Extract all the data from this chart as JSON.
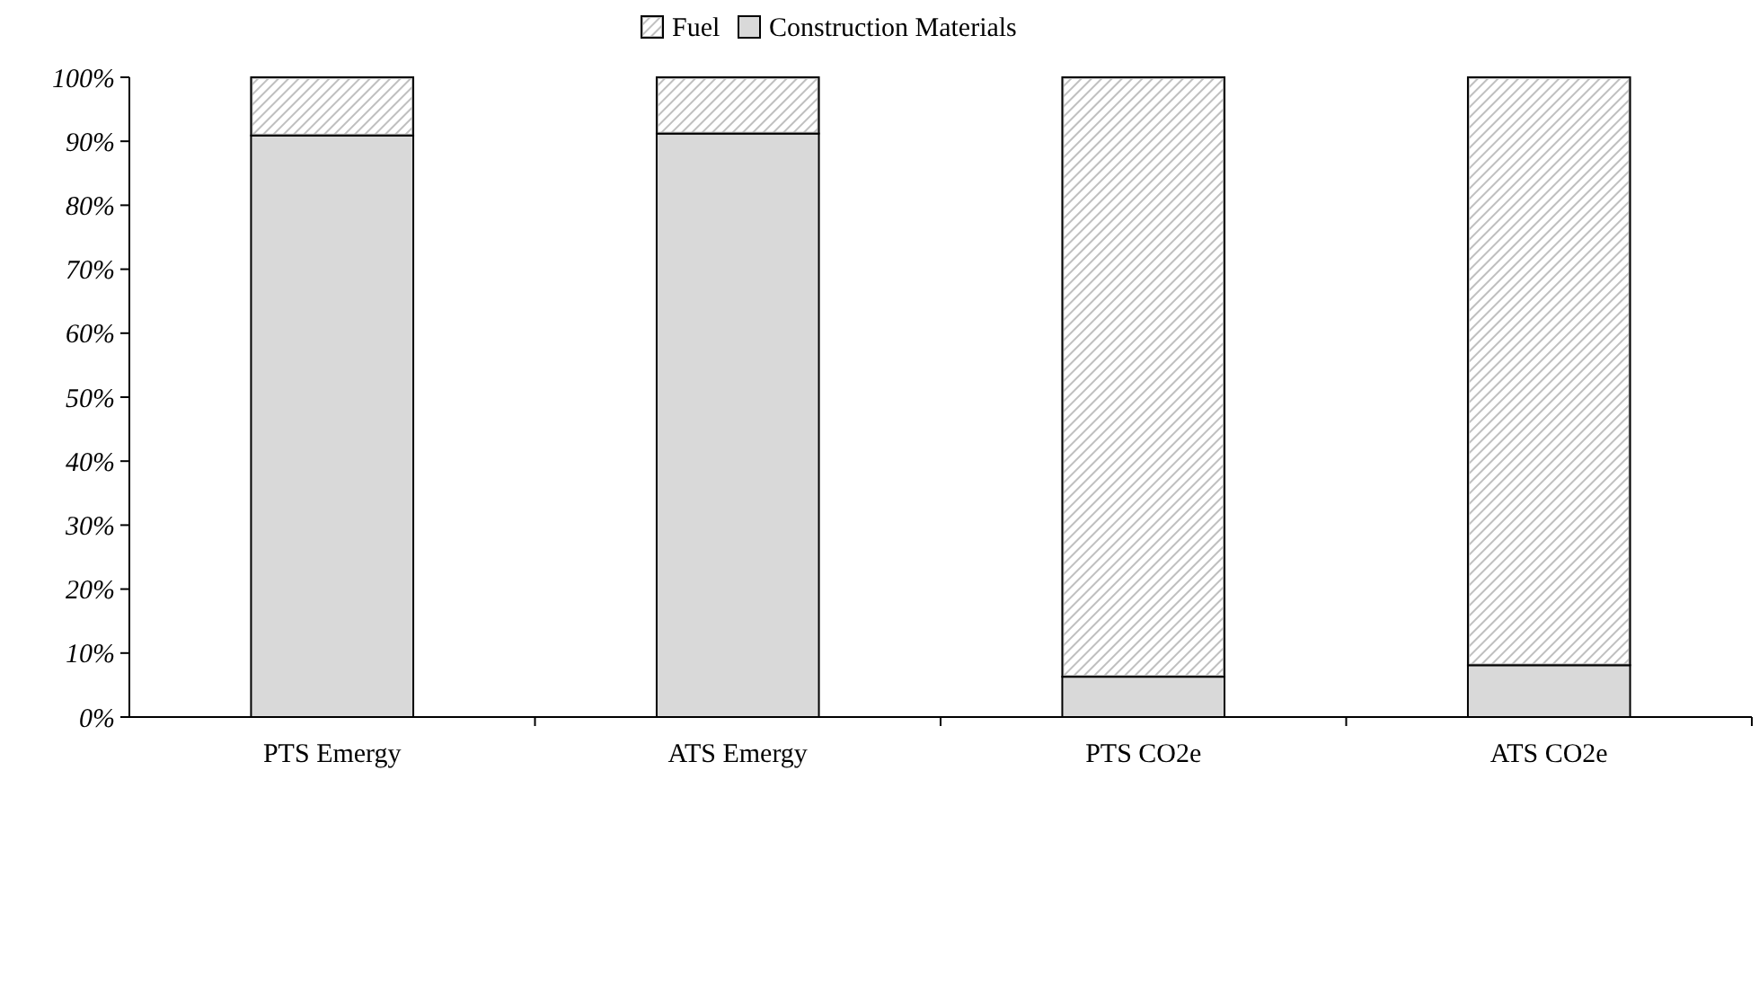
{
  "chart_data": {
    "type": "bar",
    "stacked": true,
    "legend": "top",
    "categories": [
      "PTS Emergy",
      "ATS Emergy",
      "PTS CO2e",
      "ATS CO2e"
    ],
    "series": [
      {
        "name": "Construction Materials",
        "color": "#d9d9d9",
        "values": [
          90.9,
          91.2,
          6.3,
          8.1
        ]
      },
      {
        "name": "Fuel",
        "color": "#bfbfbf",
        "values": [
          9.1,
          8.8,
          93.7,
          91.9
        ]
      }
    ],
    "ylim": [
      0,
      100
    ],
    "yticks": [
      {
        "value": 0,
        "label": "0%"
      },
      {
        "value": 10,
        "label": "10%"
      },
      {
        "value": 20,
        "label": "20%"
      },
      {
        "value": 30,
        "label": "30%"
      },
      {
        "value": 40,
        "label": "40%"
      },
      {
        "value": 50,
        "label": "50%"
      },
      {
        "value": 60,
        "label": "60%"
      },
      {
        "value": 70,
        "label": "70%"
      },
      {
        "value": 80,
        "label": "80%"
      },
      {
        "value": 90,
        "label": "90%"
      },
      {
        "value": 100,
        "label": "100%"
      }
    ]
  }
}
